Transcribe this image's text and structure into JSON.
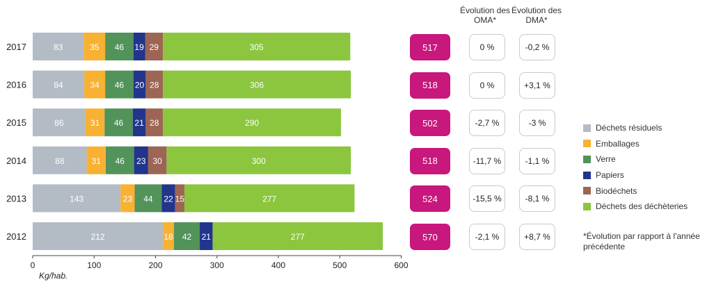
{
  "chart_data": {
    "type": "bar",
    "orientation": "horizontal",
    "stacked": true,
    "categories": [
      "2017",
      "2016",
      "2015",
      "2014",
      "2013",
      "2012"
    ],
    "series": [
      {
        "name": "Déchets résiduels",
        "color": "#b3bcc4",
        "values": [
          83,
          84,
          86,
          88,
          143,
          212
        ]
      },
      {
        "name": "Emballages",
        "color": "#f8b133",
        "values": [
          35,
          34,
          31,
          31,
          23,
          18
        ]
      },
      {
        "name": "Verre",
        "color": "#52935a",
        "values": [
          46,
          46,
          46,
          46,
          44,
          42
        ]
      },
      {
        "name": "Papiers",
        "color": "#22358c",
        "values": [
          19,
          20,
          21,
          23,
          22,
          21
        ]
      },
      {
        "name": "Biodéchets",
        "color": "#9d6553",
        "values": [
          29,
          28,
          28,
          30,
          15,
          0
        ]
      },
      {
        "name": "Déchets des déchèteries",
        "color": "#8cc63f",
        "values": [
          305,
          306,
          290,
          300,
          277,
          277
        ]
      }
    ],
    "totals": [
      "517",
      "518",
      "502",
      "518",
      "524",
      "570"
    ],
    "xlim": [
      0,
      600
    ],
    "xticks": [
      0,
      100,
      200,
      300,
      400,
      500,
      600
    ],
    "xlabel": "Kg/hab.",
    "legend_position": "right",
    "grid": false
  },
  "evolution": {
    "oma_header": "Évolution des OMA*",
    "dma_header": "Évolution des DMA*",
    "oma": [
      "0 %",
      "0 %",
      "-2,7 %",
      "-11,7 %",
      "-15,5 %",
      "-2,1 %"
    ],
    "dma": [
      "-0,2 %",
      "+3,1 %",
      "-3 %",
      "-1,1 %",
      "-8,1 %",
      "+8,7 %"
    ]
  },
  "footnote": "*Évolution par rapport à l'année précédente"
}
